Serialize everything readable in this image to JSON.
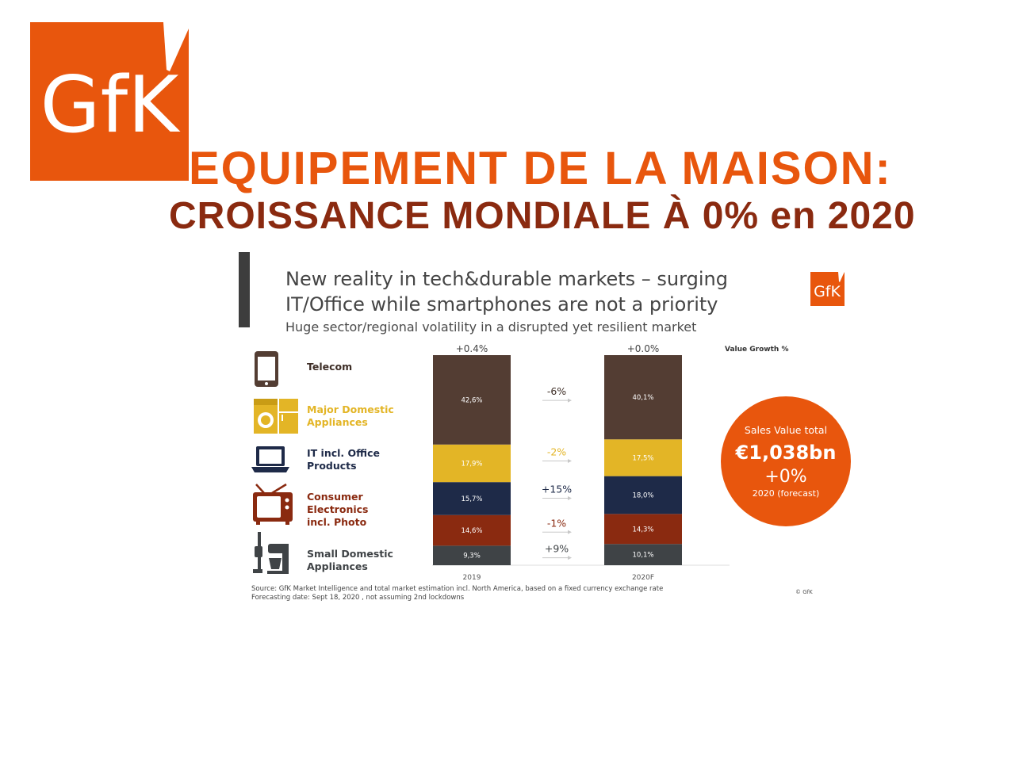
{
  "logo_text": "GfK",
  "title_main": "EQUIPEMENT DE LA MAISON:",
  "title_sub": "CROISSANCE MONDIALE À 0% en 2020",
  "slide": {
    "heading_line1": "New reality in tech&durable markets – surging",
    "heading_line2": "IT/Office while smartphones are not a priority",
    "subheading": "Huge sector/regional volatility in a disrupted yet resilient market",
    "source_line1": "Source: GfK Market Intelligence and total market estimation incl. North America, based on a fixed currency exchange rate",
    "source_line2": "Forecasting date: Sept 18, 2020 , not assuming 2nd lockdowns",
    "copyright": "© GfK"
  },
  "callout": {
    "line1": "Sales Value total",
    "line2": "€1,038bn",
    "line3": "+0%",
    "line4": "2020 (forecast)",
    "color": "#e8560d"
  },
  "colors": {
    "brand_orange": "#e8560d",
    "title_dark": "#8a2a10"
  },
  "chart_data": {
    "type": "bar",
    "stacked": true,
    "categories": [
      "2019",
      "2020F"
    ],
    "totals_growth_labels": [
      "+0.4%",
      "+0.0%"
    ],
    "legend_title": "Value Growth %",
    "series": [
      {
        "name": "Small Domestic Appliances",
        "values": [
          9.3,
          10.1
        ],
        "labels": [
          "9,3%",
          "10,1%"
        ],
        "growth": "+9%",
        "color": "#3f4346",
        "label_color": "#3f4346",
        "icon": "vacuum-mixer-icon"
      },
      {
        "name": "Consumer Electronics incl. Photo",
        "values": [
          14.6,
          14.3
        ],
        "labels": [
          "14,6%",
          "14,3%"
        ],
        "growth": "-1%",
        "color": "#8a2a10",
        "label_color": "#8a2a10",
        "icon": "tv-icon"
      },
      {
        "name": "IT incl. Office Products",
        "values": [
          15.7,
          18.0
        ],
        "labels": [
          "15,7%",
          "18,0%"
        ],
        "growth": "+15%",
        "color": "#1e2a48",
        "label_color": "#1e2a48",
        "icon": "laptop-icon"
      },
      {
        "name": "Major Domestic Appliances",
        "values": [
          17.9,
          17.5
        ],
        "labels": [
          "17,9%",
          "17,5%"
        ],
        "growth": "-2%",
        "color": "#e3b526",
        "label_color": "#e3b526",
        "icon": "washing-machine-icon"
      },
      {
        "name": "Telecom",
        "values": [
          42.6,
          40.1
        ],
        "labels": [
          "42,6%",
          "40,1%"
        ],
        "growth": "-6%",
        "color": "#533d33",
        "label_color": "#3d2d26",
        "icon": "smartphone-icon"
      }
    ]
  }
}
